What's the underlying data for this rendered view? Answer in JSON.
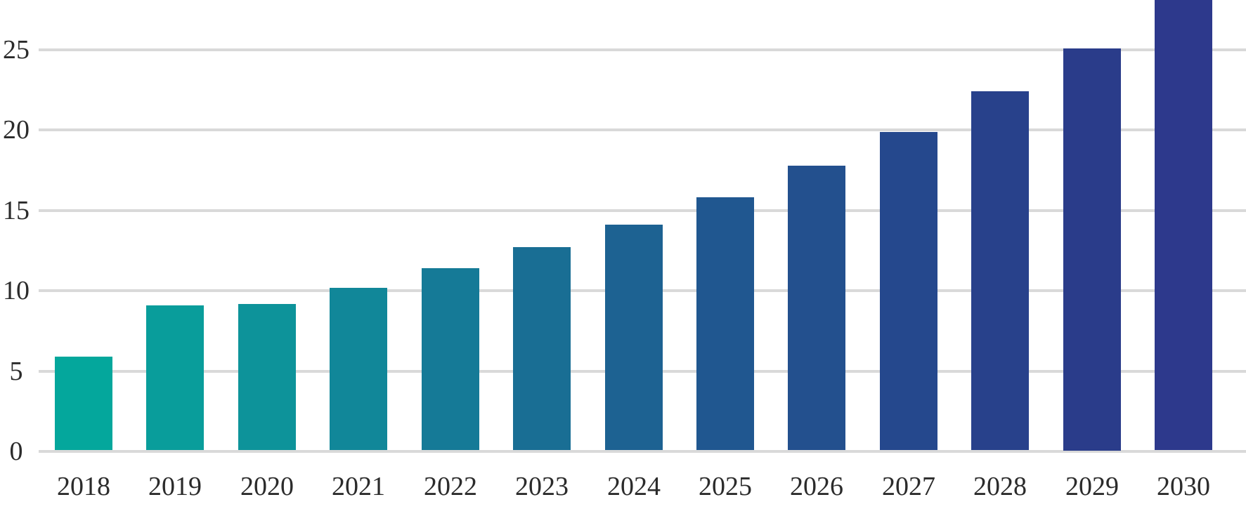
{
  "chart_data": {
    "type": "bar",
    "title": "",
    "xlabel": "",
    "ylabel": "",
    "categories": [
      "2018",
      "2019",
      "2020",
      "2021",
      "2022",
      "2023",
      "2024",
      "2025",
      "2026",
      "2027",
      "2028",
      "2029",
      "2030"
    ],
    "values": [
      5.8,
      9.0,
      9.1,
      10.1,
      11.3,
      12.6,
      14.0,
      15.7,
      17.7,
      19.8,
      22.3,
      25.0,
      28.6
    ],
    "bar_colors": [
      "#04a79c",
      "#099d9b",
      "#0d939a",
      "#118799",
      "#157a97",
      "#196e94",
      "#1d6292",
      "#205790",
      "#23508e",
      "#25488d",
      "#28418b",
      "#2a3c8a",
      "#2d398c"
    ],
    "y_ticks": [
      0,
      5,
      10,
      15,
      20,
      25
    ],
    "y_tick_labels": [
      "0",
      "5",
      "10",
      "15",
      "20",
      "25"
    ],
    "ylim": [
      0,
      28.1
    ],
    "grid": true,
    "legend": false,
    "notes": "Last bar (2030) extends past the top edge of the image and is clipped; bar colors form a continuous teal-to-navy progression left to right."
  },
  "colors": {
    "gridline": "#d9d9d9",
    "tick_text": "#2b2b2b",
    "background": "#ffffff"
  }
}
